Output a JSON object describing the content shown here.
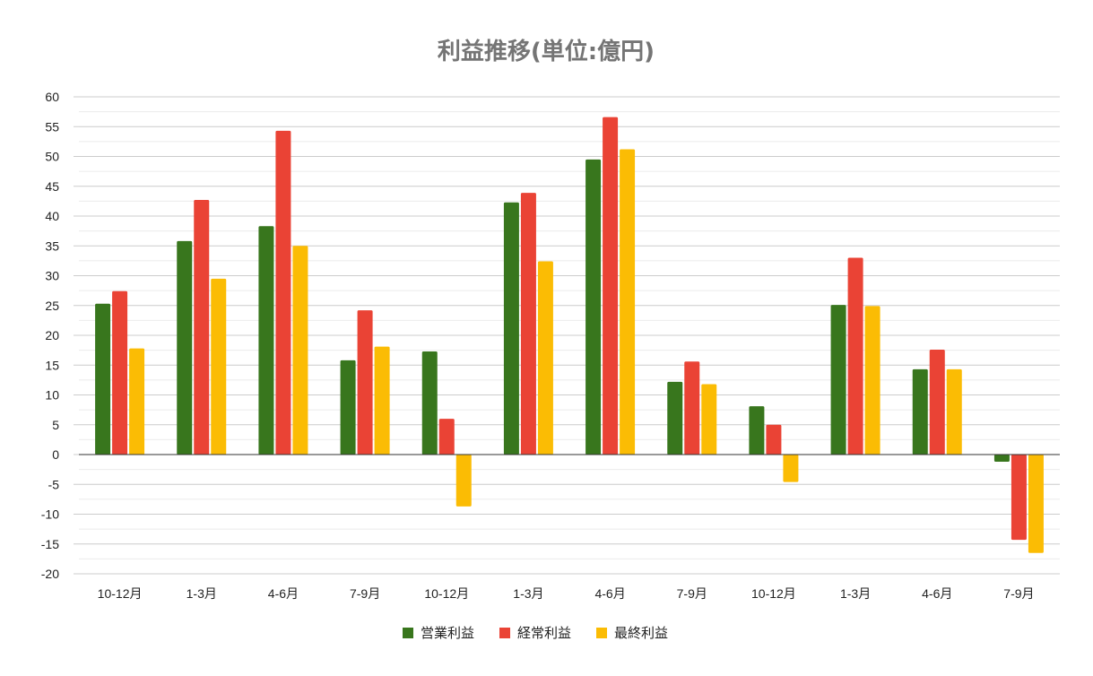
{
  "chart_data": {
    "type": "bar",
    "title": "利益推移(単位:億円)",
    "categories": [
      "10-12月",
      "1-3月",
      "4-6月",
      "7-9月",
      "10-12月",
      "1-3月",
      "4-6月",
      "7-9月",
      "10-12月",
      "1-3月",
      "4-6月",
      "7-9月"
    ],
    "series": [
      {
        "name": "営業利益",
        "color": "#38761d",
        "values": [
          25.3,
          35.8,
          38.3,
          15.8,
          17.3,
          42.3,
          49.5,
          12.2,
          8.1,
          25.1,
          14.3,
          -1.2
        ]
      },
      {
        "name": "経常利益",
        "color": "#ea4335",
        "values": [
          27.4,
          42.7,
          54.3,
          24.2,
          6.0,
          43.9,
          56.6,
          15.6,
          5.0,
          33.0,
          17.6,
          -14.3
        ]
      },
      {
        "name": "最終利益",
        "color": "#fbbc04",
        "values": [
          17.8,
          29.5,
          35.0,
          18.1,
          -8.7,
          32.4,
          51.2,
          11.8,
          -4.6,
          24.9,
          14.3,
          -16.5
        ]
      }
    ],
    "yticks": [
      "60",
      "55",
      "50",
      "45",
      "40",
      "35",
      "30",
      "25",
      "20",
      "15",
      "10",
      "5",
      "0",
      "-5",
      "-10",
      "-15",
      "-20"
    ],
    "ylim": [
      -20,
      60
    ],
    "grid": true,
    "legend": "bottom"
  }
}
